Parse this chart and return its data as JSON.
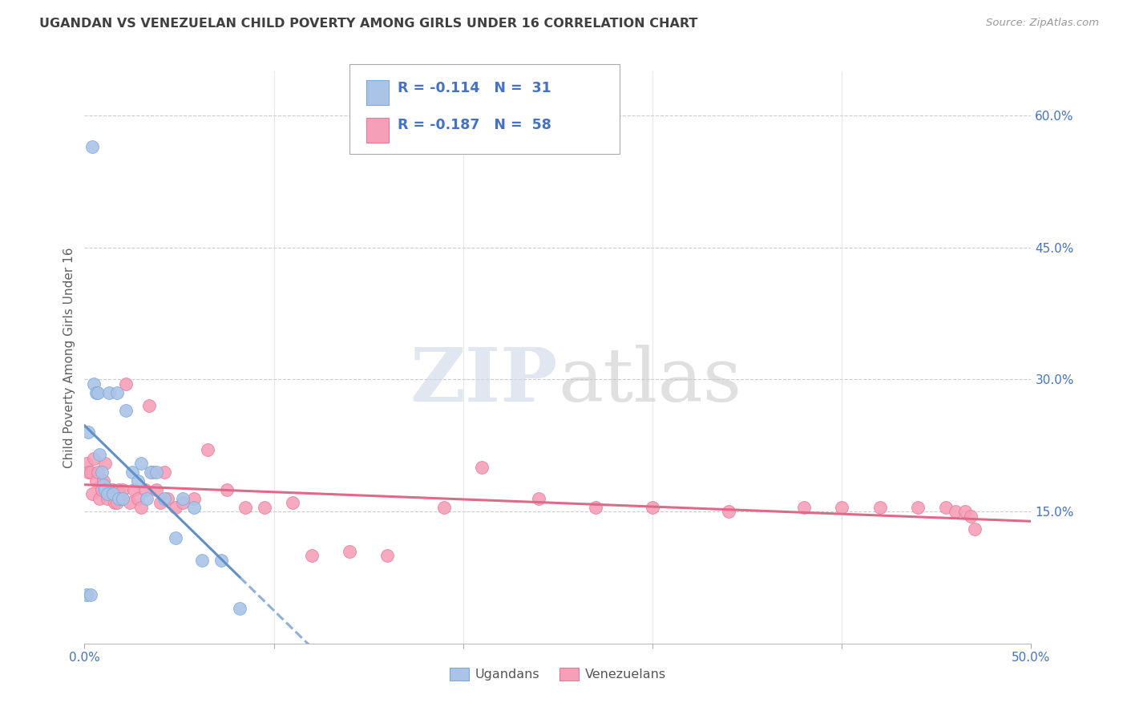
{
  "title": "UGANDAN VS VENEZUELAN CHILD POVERTY AMONG GIRLS UNDER 16 CORRELATION CHART",
  "source": "Source: ZipAtlas.com",
  "ylabel": "Child Poverty Among Girls Under 16",
  "xlim": [
    0.0,
    0.5
  ],
  "ylim": [
    0.0,
    0.65
  ],
  "y_ticks_right": [
    0.15,
    0.3,
    0.45,
    0.6
  ],
  "y_tick_labels_right": [
    "15.0%",
    "30.0%",
    "45.0%",
    "60.0%"
  ],
  "x_ticks": [
    0.0,
    0.1,
    0.2,
    0.3,
    0.4,
    0.5
  ],
  "x_tick_labels": [
    "0.0%",
    "",
    "",
    "",
    "",
    "50.0%"
  ],
  "background_color": "#ffffff",
  "grid_color": "#cccccc",
  "ugandan_color": "#aac4e8",
  "venezuelan_color": "#f5a0b8",
  "ugandan_edge_color": "#7aa8d8",
  "venezuelan_edge_color": "#e87898",
  "ugandan_line_color": "#6090c8",
  "venezuelan_line_color": "#e06888",
  "watermark_zip_color": "#ccd8e8",
  "watermark_atlas_color": "#c8c8c8",
  "legend_text_color": "#4472c4",
  "axis_label_color": "#4472c4",
  "title_color": "#404040",
  "ylabel_color": "#606060",
  "ugandan_x": [
    0.001,
    0.002,
    0.003,
    0.004,
    0.005,
    0.006,
    0.007,
    0.008,
    0.009,
    0.01,
    0.011,
    0.012,
    0.013,
    0.015,
    0.017,
    0.018,
    0.02,
    0.022,
    0.025,
    0.028,
    0.03,
    0.033,
    0.035,
    0.038,
    0.042,
    0.048,
    0.052,
    0.058,
    0.062,
    0.072,
    0.082
  ],
  "ugandan_y": [
    0.055,
    0.24,
    0.055,
    0.565,
    0.295,
    0.285,
    0.285,
    0.215,
    0.195,
    0.18,
    0.175,
    0.17,
    0.285,
    0.17,
    0.285,
    0.165,
    0.165,
    0.265,
    0.195,
    0.185,
    0.205,
    0.165,
    0.195,
    0.195,
    0.165,
    0.12,
    0.165,
    0.155,
    0.095,
    0.095,
    0.04
  ],
  "venezuelan_x": [
    0.001,
    0.002,
    0.003,
    0.004,
    0.005,
    0.006,
    0.007,
    0.008,
    0.009,
    0.01,
    0.011,
    0.012,
    0.013,
    0.014,
    0.015,
    0.016,
    0.017,
    0.018,
    0.019,
    0.02,
    0.022,
    0.024,
    0.026,
    0.028,
    0.03,
    0.032,
    0.034,
    0.036,
    0.038,
    0.04,
    0.042,
    0.044,
    0.048,
    0.052,
    0.058,
    0.065,
    0.075,
    0.085,
    0.095,
    0.11,
    0.12,
    0.14,
    0.16,
    0.19,
    0.21,
    0.24,
    0.27,
    0.3,
    0.34,
    0.38,
    0.4,
    0.42,
    0.44,
    0.455,
    0.46,
    0.465,
    0.468,
    0.47
  ],
  "venezuelan_y": [
    0.205,
    0.195,
    0.195,
    0.17,
    0.21,
    0.185,
    0.195,
    0.165,
    0.175,
    0.185,
    0.205,
    0.165,
    0.175,
    0.175,
    0.175,
    0.16,
    0.16,
    0.175,
    0.165,
    0.175,
    0.295,
    0.16,
    0.175,
    0.165,
    0.155,
    0.175,
    0.27,
    0.195,
    0.175,
    0.16,
    0.195,
    0.165,
    0.155,
    0.16,
    0.165,
    0.22,
    0.175,
    0.155,
    0.155,
    0.16,
    0.1,
    0.105,
    0.1,
    0.155,
    0.2,
    0.165,
    0.155,
    0.155,
    0.15,
    0.155,
    0.155,
    0.155,
    0.155,
    0.155,
    0.15,
    0.15,
    0.145,
    0.13
  ]
}
